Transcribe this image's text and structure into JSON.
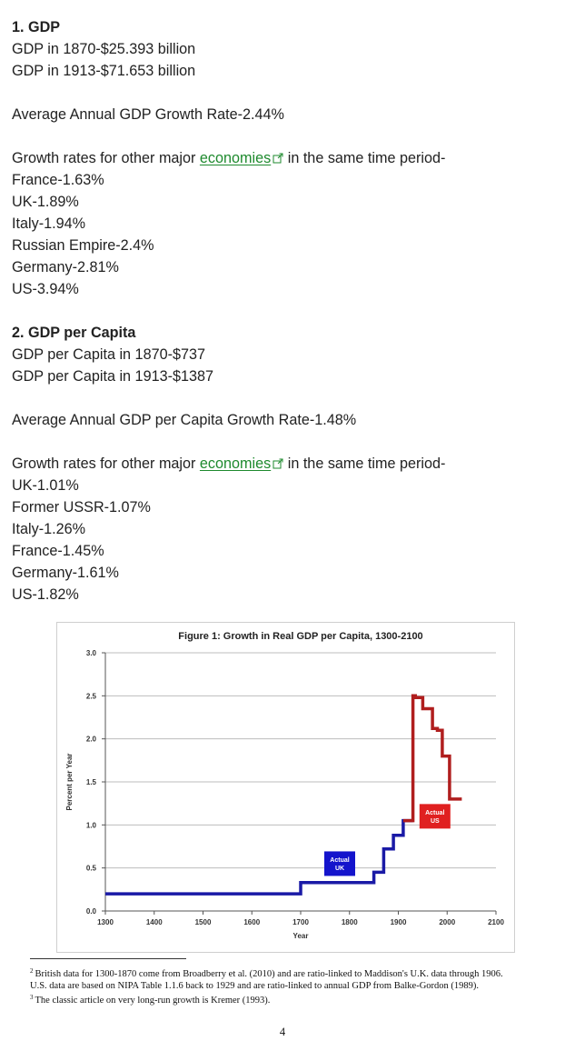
{
  "gdp_section": {
    "heading": "1. GDP",
    "lines": [
      "GDP in 1870-$25.393 billion",
      "GDP in 1913-$71.653 billion"
    ],
    "average": "Average Annual GDP Growth Rate-2.44%",
    "intro_before": "Growth rates for other major ",
    "link_text": "economies",
    "intro_after": " in the same time period-",
    "rates": [
      "France-1.63%",
      "UK-1.89%",
      "Italy-1.94%",
      "Russian Empire-2.4%",
      "Germany-2.81%",
      "US-3.94%"
    ]
  },
  "gdp_per_capita_section": {
    "heading": "2. GDP per Capita",
    "lines": [
      "GDP per Capita in 1870-$737",
      "GDP per Capita in 1913-$1387"
    ],
    "average": "Average Annual GDP per Capita Growth Rate-1.48%",
    "intro_before": "Growth rates for other major ",
    "link_text": "economies",
    "intro_after": " in the same time period-",
    "rates": [
      "UK-1.01%",
      "Former USSR-1.07%",
      "Italy-1.26%",
      "France-1.45%",
      "Germany-1.61%",
      "US-1.82%"
    ]
  },
  "chart_data": {
    "type": "line",
    "title": "Figure 1: Growth in Real GDP per Capita, 1300-2100",
    "xlabel": "Year",
    "ylabel": "Percent per Year",
    "xlim": [
      1300,
      2100
    ],
    "ylim": [
      0.0,
      3.0
    ],
    "x_ticks": [
      "1300",
      "1400",
      "1500",
      "1600",
      "1700",
      "1800",
      "1900",
      "2000",
      "2100"
    ],
    "y_ticks": [
      "0.0",
      "0.5",
      "1.0",
      "1.5",
      "2.0",
      "2.5",
      "3.0"
    ],
    "grid": true,
    "series": [
      {
        "name": "Actual UK",
        "color": "#1a1aa6",
        "step": true,
        "x": [
          1300,
          1700,
          1700,
          1850,
          1850,
          1870,
          1870,
          1890,
          1890,
          1910,
          1910,
          1930
        ],
        "y": [
          0.2,
          0.2,
          0.33,
          0.33,
          0.45,
          0.45,
          0.72,
          0.72,
          0.88,
          0.88,
          1.05,
          1.05
        ]
      },
      {
        "name": "Actual US",
        "color": "#b01e1e",
        "step": true,
        "x": [
          1910,
          1930,
          1930,
          1935,
          1935,
          1950,
          1950,
          1970,
          1970,
          1980,
          1980,
          1990,
          1990,
          2005,
          2005,
          2030
        ],
        "y": [
          1.05,
          1.05,
          2.5,
          2.5,
          2.48,
          2.48,
          2.35,
          2.35,
          2.12,
          2.12,
          2.1,
          2.1,
          1.8,
          1.8,
          1.3,
          1.3
        ]
      }
    ],
    "annotations": [
      {
        "text": "Actual\nUK",
        "series": "Actual UK",
        "x": 1780,
        "y": 0.55,
        "color": "#1414cc"
      },
      {
        "text": "Actual\nUS",
        "series": "Actual US",
        "x": 1975,
        "y": 1.1,
        "color": "#e02020"
      }
    ]
  },
  "footnotes": {
    "note2_marker": "2",
    "note2_text": "British data for 1300-1870 come from Broadberry et al. (2010) and are ratio-linked to Maddison's U.K. data through 1906.  U.S. data are based on NIPA Table 1.1.6 back to 1929 and are ratio-linked to annual GDP from Balke-Gordon (1989).",
    "note3_marker": "3",
    "note3_text": "The classic article on very long-run growth is Kremer (1993)."
  },
  "page_number": "4",
  "colors": {
    "link": "#1e8a2e",
    "uk_series": "#1a1aa6",
    "us_series": "#b01e1e"
  }
}
